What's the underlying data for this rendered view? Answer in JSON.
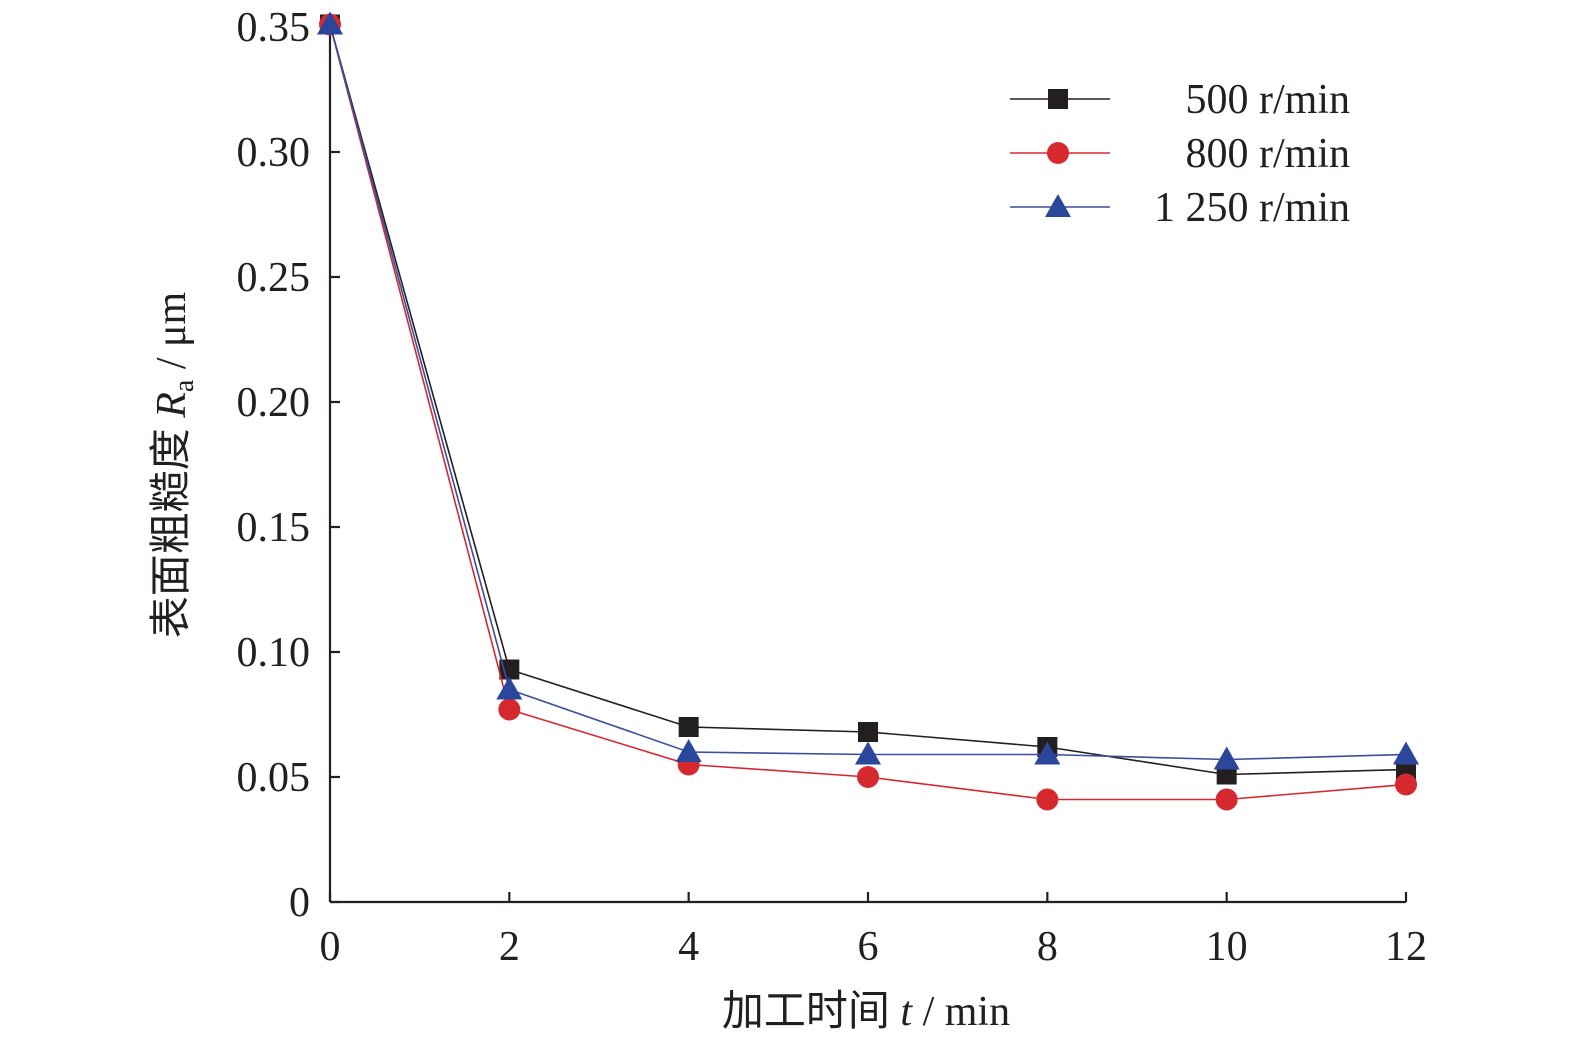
{
  "chart_data": {
    "type": "line",
    "title": "",
    "x_label": {
      "prefix": "加工时间 ",
      "variable": "t",
      "suffix": " / min"
    },
    "y_label": {
      "prefix": "表面粗糙度 ",
      "variable": "R",
      "subscript": "a",
      "suffix": " / μm"
    },
    "x": [
      0,
      2,
      4,
      6,
      8,
      10,
      12
    ],
    "xlim": [
      0,
      12
    ],
    "ylim": [
      0,
      0.35
    ],
    "x_ticks": [
      "0",
      "2",
      "4",
      "6",
      "8",
      "10",
      "12"
    ],
    "y_ticks": [
      "0",
      "0.05",
      "0.10",
      "0.15",
      "0.20",
      "0.25",
      "0.30",
      "0.35"
    ],
    "grid": false,
    "legend_position": "top-right",
    "series": [
      {
        "name": "500 r/min",
        "marker": "square",
        "line_color": "#231f20",
        "marker_color": "#231f20",
        "values": [
          0.351,
          0.093,
          0.07,
          0.068,
          0.062,
          0.051,
          0.053
        ]
      },
      {
        "name": "800 r/min",
        "marker": "circle",
        "line_color": "#d6282f",
        "marker_color": "#d6282f",
        "values": [
          0.351,
          0.077,
          0.055,
          0.05,
          0.041,
          0.041,
          0.047
        ]
      },
      {
        "name": "1 250 r/min",
        "marker": "triangle",
        "line_color": "#3a4f9c",
        "marker_color": "#2a479c",
        "values": [
          0.351,
          0.085,
          0.06,
          0.059,
          0.059,
          0.057,
          0.059
        ]
      }
    ]
  }
}
